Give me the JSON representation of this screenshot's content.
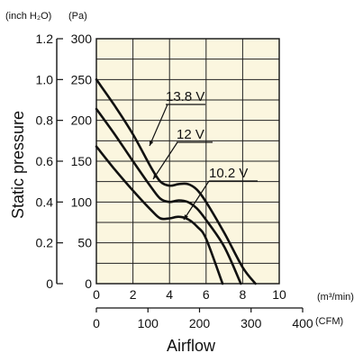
{
  "chart_data": {
    "type": "line",
    "ylabel": "Static pressure",
    "xlabel": "Airflow",
    "y_units": {
      "left": "(inch H₂O)",
      "right": "(Pa)"
    },
    "x_units": {
      "top": "(m³/min)",
      "bottom": "(CFM)"
    },
    "x_ticks_m3min": [
      "0",
      "2",
      "4",
      "6",
      "8",
      "10"
    ],
    "x_ticks_cfm": [
      "0",
      "100",
      "200",
      "300",
      "400"
    ],
    "y_ticks_pa": [
      "0",
      "50",
      "100",
      "150",
      "200",
      "250",
      "300"
    ],
    "y_ticks_inch": [
      "0",
      "0.2",
      "0.4",
      "0.6",
      "0.8",
      "1.0",
      "1.2"
    ],
    "xlim_m3min": [
      0,
      10
    ],
    "xlim_cfm": [
      0,
      400
    ],
    "ylim_pa": [
      0,
      300
    ],
    "grid": true,
    "series": [
      {
        "name": "13.8 V",
        "x": [
          0,
          1,
          2,
          3,
          3.5,
          4,
          4.5,
          5,
          5.5,
          6,
          7,
          8,
          8.7
        ],
        "y": [
          250,
          218,
          183,
          142,
          125,
          120,
          122,
          122,
          115,
          100,
          62,
          20,
          0
        ]
      },
      {
        "name": "12 V",
        "x": [
          0,
          1,
          2,
          3,
          3.5,
          4,
          4.5,
          5,
          5.5,
          6,
          7,
          7.9
        ],
        "y": [
          214,
          183,
          150,
          118,
          104,
          100,
          102,
          100,
          92,
          78,
          45,
          0
        ]
      },
      {
        "name": "10.2 V",
        "x": [
          0,
          1,
          2,
          3,
          3.5,
          4,
          4.5,
          5,
          5.5,
          6,
          6.9
        ],
        "y": [
          168,
          140,
          114,
          90,
          80,
          80,
          82,
          79,
          70,
          55,
          0
        ]
      }
    ]
  }
}
